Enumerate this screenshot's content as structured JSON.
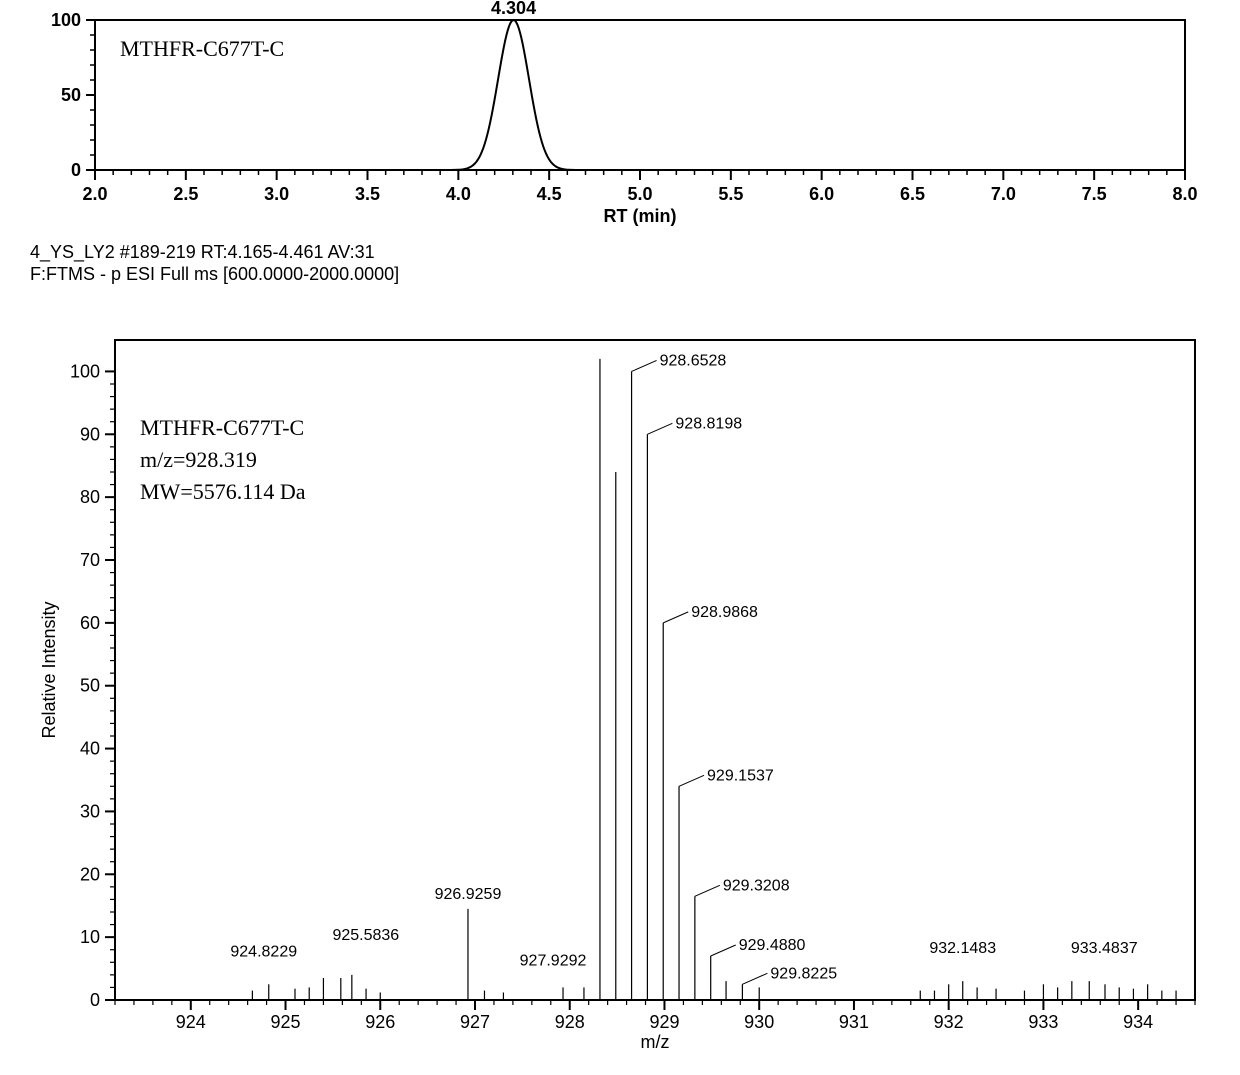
{
  "chromatogram": {
    "type": "line",
    "title": "MTHFR-C677T-C",
    "title_fontsize": 22,
    "peak_label": "4.304",
    "peak_label_fontsize": 18,
    "xlabel": "RT (min)",
    "xlabel_fontsize": 18,
    "xlim": [
      2.0,
      8.0
    ],
    "xtick_major_step": 0.5,
    "xtick_minor_per_major": 5,
    "ylim": [
      0,
      100
    ],
    "yticks": [
      0,
      50,
      100
    ],
    "ytick_fontsize": 18,
    "xtick_fontsize": 18,
    "line_color": "#000000",
    "line_width": 2,
    "axis_color": "#000000",
    "background_color": "#ffffff",
    "peak_center": 4.304,
    "peak_height": 100,
    "peak_sigma": 0.085
  },
  "metadata": {
    "line1": "4_YS_LY2 #189-219 RT:4.165-4.461 AV:31",
    "line2": "F:FTMS - p ESI Full ms [600.0000-2000.0000]",
    "fontsize": 18,
    "color": "#000000"
  },
  "spectrum": {
    "type": "ms-stick",
    "annotation_lines": [
      "MTHFR-C677T-C",
      "m/z=928.319",
      "MW=5576.114  Da"
    ],
    "annotation_fontsize": 22,
    "ylabel": "Relative Intensity",
    "xlabel": "m/z",
    "label_fontsize": 18,
    "ylim": [
      0,
      105
    ],
    "yticks": [
      0,
      10,
      20,
      30,
      40,
      50,
      60,
      70,
      80,
      90,
      100
    ],
    "ytick_fontsize": 18,
    "xtick_fontsize": 18,
    "xlim": [
      923.2,
      934.6
    ],
    "xtick_major_step": 1,
    "xtick_minor_per_major": 5,
    "line_color": "#000000",
    "stick_width": 1.2,
    "axis_color": "#000000",
    "background_color": "#ffffff",
    "labeled_peaks": [
      {
        "mz": 924.8229,
        "intensity": 2.5,
        "label": "924.8229",
        "label_y_offset": 4
      },
      {
        "mz": 925.5836,
        "intensity": 3.5,
        "label": "925.5836",
        "label_y_offset": 5
      },
      {
        "mz": 926.9259,
        "intensity": 14.5,
        "label": "926.9259",
        "label_y_offset": 3
      },
      {
        "mz": 927.9292,
        "intensity": 2.0,
        "label": "927.9292",
        "label_y_offset": 3
      },
      {
        "mz": 928.6528,
        "intensity": 100,
        "label": "928.6528",
        "label_y_offset": 3
      },
      {
        "mz": 928.8198,
        "intensity": 90,
        "label": "928.8198",
        "label_y_offset": 3
      },
      {
        "mz": 928.9868,
        "intensity": 60,
        "label": "928.9868",
        "label_y_offset": 3
      },
      {
        "mz": 929.1537,
        "intensity": 34,
        "label": "929.1537",
        "label_y_offset": 3
      },
      {
        "mz": 929.3208,
        "intensity": 16.5,
        "label": "929.3208",
        "label_y_offset": 3
      },
      {
        "mz": 929.488,
        "intensity": 7,
        "label": "929.4880",
        "label_y_offset": 3
      },
      {
        "mz": 929.8225,
        "intensity": 2.5,
        "label": "929.8225",
        "label_y_offset": 3
      },
      {
        "mz": 932.1483,
        "intensity": 3,
        "label": "932.1483",
        "label_y_offset": 4
      },
      {
        "mz": 933.4837,
        "intensity": 3,
        "label": "933.4837",
        "label_y_offset": 4
      }
    ],
    "unlabeled_peaks": [
      {
        "mz": 924.65,
        "intensity": 1.5
      },
      {
        "mz": 925.1,
        "intensity": 1.8
      },
      {
        "mz": 925.25,
        "intensity": 2.0
      },
      {
        "mz": 925.4,
        "intensity": 3.5
      },
      {
        "mz": 925.7,
        "intensity": 4.0
      },
      {
        "mz": 925.85,
        "intensity": 1.8
      },
      {
        "mz": 926.0,
        "intensity": 1.2
      },
      {
        "mz": 927.1,
        "intensity": 1.5
      },
      {
        "mz": 927.3,
        "intensity": 1.2
      },
      {
        "mz": 928.15,
        "intensity": 2.0
      },
      {
        "mz": 928.319,
        "intensity": 102
      },
      {
        "mz": 928.486,
        "intensity": 84
      },
      {
        "mz": 929.65,
        "intensity": 3.0
      },
      {
        "mz": 930.0,
        "intensity": 2.0
      },
      {
        "mz": 931.7,
        "intensity": 1.5
      },
      {
        "mz": 931.85,
        "intensity": 1.5
      },
      {
        "mz": 932.0,
        "intensity": 2.5
      },
      {
        "mz": 932.3,
        "intensity": 2.0
      },
      {
        "mz": 932.5,
        "intensity": 1.8
      },
      {
        "mz": 932.8,
        "intensity": 1.5
      },
      {
        "mz": 933.0,
        "intensity": 2.5
      },
      {
        "mz": 933.15,
        "intensity": 2.0
      },
      {
        "mz": 933.3,
        "intensity": 3.0
      },
      {
        "mz": 933.65,
        "intensity": 2.5
      },
      {
        "mz": 933.8,
        "intensity": 2.0
      },
      {
        "mz": 933.95,
        "intensity": 1.8
      },
      {
        "mz": 934.1,
        "intensity": 2.5
      },
      {
        "mz": 934.25,
        "intensity": 1.5
      },
      {
        "mz": 934.4,
        "intensity": 1.5
      }
    ]
  }
}
